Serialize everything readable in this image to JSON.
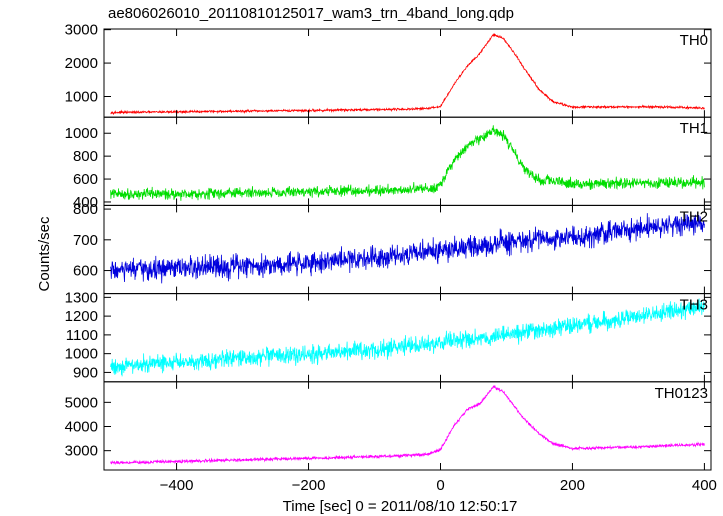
{
  "title": "ae806026010_20110810125017_wam3_trn_4band_long.qdp",
  "chart_data": {
    "type": "line",
    "xlabel": "Time [sec] 0 = 2011/08/10 12:50:17",
    "ylabel": "Counts/sec",
    "xlim": [
      -510,
      410
    ],
    "xticks": [
      -400,
      -200,
      0,
      200,
      400
    ],
    "xtick_labels": [
      "−400",
      "−200",
      "0",
      "200",
      "400"
    ],
    "grid": false,
    "panels": [
      {
        "name": "TH0",
        "color": "#ff0000",
        "ylim": [
          380,
          3020
        ],
        "yticks": [
          1000,
          2000,
          3000
        ],
        "ytick_labels": [
          "1000",
          "2000",
          "3000"
        ],
        "x": [
          -500,
          -400,
          -300,
          -200,
          -100,
          -50,
          -20,
          0,
          20,
          40,
          60,
          80,
          95,
          110,
          130,
          150,
          170,
          200,
          250,
          300,
          350,
          400
        ],
        "y": [
          520,
          540,
          560,
          580,
          610,
          620,
          640,
          700,
          1350,
          1900,
          2300,
          2850,
          2750,
          2350,
          1750,
          1200,
          850,
          680,
          690,
          690,
          680,
          650
        ],
        "noise": 25
      },
      {
        "name": "TH1",
        "color": "#00dd00",
        "ylim": [
          370,
          1140
        ],
        "yticks": [
          400,
          600,
          800,
          1000
        ],
        "ytick_labels": [
          "400",
          "600",
          "800",
          "1000"
        ],
        "x": [
          -500,
          -400,
          -300,
          -200,
          -100,
          -50,
          -10,
          0,
          20,
          40,
          60,
          80,
          95,
          110,
          130,
          150,
          200,
          250,
          300,
          350,
          400
        ],
        "y": [
          470,
          470,
          480,
          490,
          500,
          510,
          520,
          560,
          750,
          880,
          950,
          1020,
          980,
          850,
          680,
          590,
          560,
          560,
          565,
          570,
          570
        ],
        "noise": 35
      },
      {
        "name": "TH2",
        "color": "#0000dd",
        "ylim": [
          525,
          812
        ],
        "yticks": [
          600,
          700,
          800
        ],
        "ytick_labels": [
          "600",
          "700",
          "800"
        ],
        "x": [
          -500,
          -400,
          -300,
          -200,
          -100,
          0,
          100,
          200,
          300,
          400
        ],
        "y": [
          600,
          605,
          615,
          625,
          645,
          665,
          690,
          710,
          735,
          760
        ],
        "noise": 28
      },
      {
        "name": "TH3",
        "color": "#00ffff",
        "ylim": [
          850,
          1320
        ],
        "yticks": [
          900,
          1000,
          1100,
          1200,
          1300
        ],
        "ytick_labels": [
          "900",
          "1000",
          "1100",
          "1200",
          "1300"
        ],
        "x": [
          -500,
          -400,
          -300,
          -200,
          -100,
          0,
          100,
          200,
          300,
          400
        ],
        "y": [
          930,
          955,
          975,
          995,
          1020,
          1060,
          1100,
          1150,
          1200,
          1250
        ],
        "noise": 35
      },
      {
        "name": "TH0123",
        "color": "#ff00ff",
        "ylim": [
          2200,
          5850
        ],
        "yticks": [
          3000,
          4000,
          5000
        ],
        "ytick_labels": [
          "3000",
          "4000",
          "5000"
        ],
        "x": [
          -500,
          -400,
          -300,
          -200,
          -100,
          -50,
          -20,
          0,
          20,
          40,
          60,
          80,
          95,
          110,
          130,
          150,
          170,
          200,
          250,
          300,
          350,
          400
        ],
        "y": [
          2500,
          2550,
          2620,
          2680,
          2760,
          2800,
          2850,
          3050,
          4000,
          4700,
          4950,
          5650,
          5450,
          4900,
          4200,
          3700,
          3300,
          3100,
          3120,
          3150,
          3220,
          3260
        ],
        "noise": 45
      }
    ]
  }
}
